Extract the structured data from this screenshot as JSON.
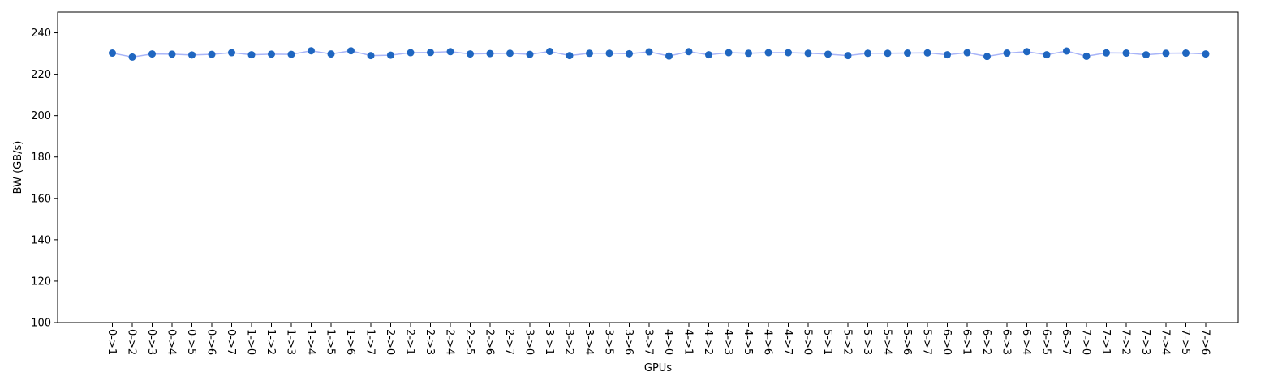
{
  "chart_data": {
    "type": "line",
    "xlabel": "GPUs",
    "ylabel": "BW (GB/s)",
    "ylim": [
      100,
      250
    ],
    "yticks": [
      100,
      120,
      140,
      160,
      180,
      200,
      220,
      240
    ],
    "grid": false,
    "line_color": "#a8b4f8",
    "marker_color": "#1f66c0",
    "categories": [
      "0->1",
      "0->2",
      "0->3",
      "0->4",
      "0->5",
      "0->6",
      "0->7",
      "1->0",
      "1->2",
      "1->3",
      "1->4",
      "1->5",
      "1->6",
      "1->7",
      "2->0",
      "2->1",
      "2->3",
      "2->4",
      "2->5",
      "2->6",
      "2->7",
      "3->0",
      "3->1",
      "3->2",
      "3->4",
      "3->5",
      "3->6",
      "3->7",
      "4->0",
      "4->1",
      "4->2",
      "4->3",
      "4->5",
      "4->6",
      "4->7",
      "5->0",
      "5->1",
      "5->2",
      "5->3",
      "5->4",
      "5->6",
      "5->7",
      "6->0",
      "6->1",
      "6->2",
      "6->3",
      "6->4",
      "6->5",
      "6->7",
      "7->0",
      "7->1",
      "7->2",
      "7->3",
      "7->4",
      "7->5",
      "7->6"
    ],
    "values": [
      230.2,
      228.3,
      229.8,
      229.7,
      229.3,
      229.6,
      230.4,
      229.4,
      229.7,
      229.6,
      231.3,
      229.8,
      231.3,
      229.0,
      229.2,
      230.4,
      230.5,
      230.9,
      229.8,
      230.0,
      230.1,
      229.6,
      231.0,
      229.0,
      230.1,
      230.1,
      229.9,
      230.8,
      228.8,
      230.9,
      229.4,
      230.4,
      230.1,
      230.4,
      230.4,
      230.1,
      229.7,
      229.0,
      230.1,
      230.1,
      230.2,
      230.3,
      229.4,
      230.4,
      228.6,
      230.2,
      230.9,
      229.4,
      231.2,
      228.7,
      230.3,
      230.2,
      229.4,
      230.1,
      230.2,
      229.8
    ]
  }
}
